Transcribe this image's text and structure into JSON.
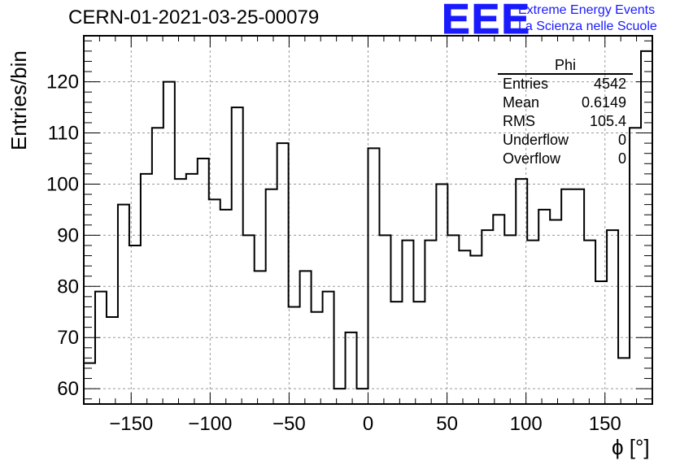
{
  "chart_data": {
    "type": "histogram",
    "title": "CERN-01-2021-03-25-00079",
    "xlabel": "ϕ [°]",
    "ylabel": "Entries/bin",
    "xlim": [
      -180,
      180
    ],
    "ylim": [
      57,
      129
    ],
    "bin_width": 7.2,
    "bin_edges_start": -180,
    "xticks": [
      -150,
      -100,
      -50,
      0,
      50,
      100,
      150
    ],
    "yticks": [
      60,
      70,
      80,
      90,
      100,
      110,
      120
    ],
    "values": [
      65,
      79,
      74,
      96,
      88,
      102,
      111,
      120,
      101,
      102,
      105,
      97,
      95,
      115,
      90,
      83,
      99,
      108,
      76,
      83,
      75,
      79,
      60,
      71,
      60,
      107,
      90,
      77,
      89,
      77,
      89,
      100,
      90,
      87,
      86,
      91,
      94,
      90,
      101,
      89,
      95,
      93,
      99,
      99,
      89,
      81,
      91,
      66,
      111,
      126
    ],
    "grid": true,
    "line_color": "#000000",
    "stats_box": {
      "title": "Phi",
      "rows": [
        {
          "label": "Entries",
          "value": "4542"
        },
        {
          "label": "Mean",
          "value": "0.6149"
        },
        {
          "label": "RMS",
          "value": "105.4"
        },
        {
          "label": "Underflow",
          "value": "0"
        },
        {
          "label": "Overflow",
          "value": "0"
        }
      ]
    }
  },
  "logo": {
    "mark": "EEE",
    "line1": "Extreme Energy Events",
    "line2": "La Scienza nelle Scuole",
    "color": "#1a1aff"
  }
}
